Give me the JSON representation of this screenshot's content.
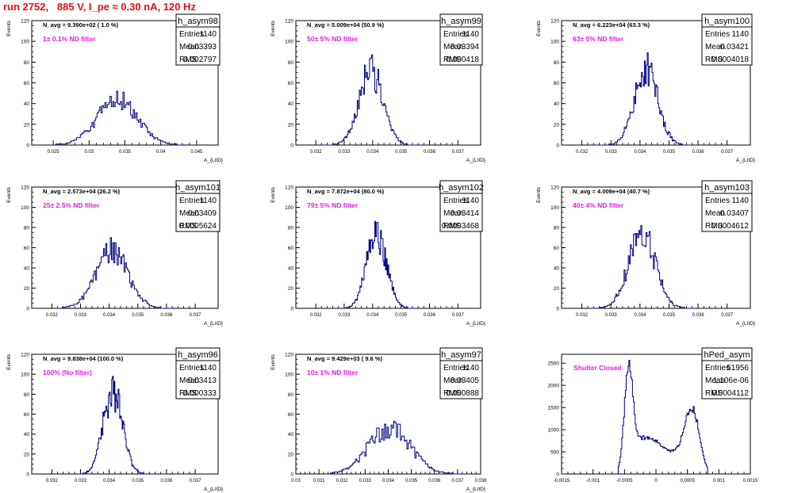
{
  "header": {
    "title": "run 2752,   885 V, I_pe ≈ 0.30 nA, 120 Hz"
  },
  "colors": {
    "title": "#e0101a",
    "annotation": "#e020e0",
    "hist_line": "#000080",
    "frame": "#000000"
  },
  "chart_data": [
    {
      "type": "histogram",
      "name": "h_asym98",
      "title": "h_asym98",
      "stats": {
        "Entries": "1140",
        "Mean": "0.03393",
        "RMS": "0.002797"
      },
      "navg": "N_avg = 9.390e+02 ( 1.0 %)",
      "annotation": "1± 0.1% ND filter",
      "xlabel": "A_{LIID}",
      "ylabel": "Events",
      "xlim": [
        0.022,
        0.048
      ],
      "ylim": [
        0,
        120
      ],
      "xticks": [
        0.025,
        0.03,
        0.035,
        0.04,
        0.045
      ],
      "xtick_labels": [
        "0.025",
        "0.03",
        "0.035",
        "0.04",
        "0.045"
      ],
      "yticks": [
        0,
        20,
        40,
        60,
        80,
        100,
        120
      ],
      "ytick_labels": [
        "0",
        "20",
        "40",
        "60",
        "80",
        "100",
        "120"
      ],
      "hist": {
        "mean": 0.03393,
        "rms": 0.002797,
        "peak": 46,
        "xmin": 0.025,
        "xmax": 0.043,
        "nbins": 100,
        "seed": 98
      }
    },
    {
      "type": "histogram",
      "name": "h_asym99",
      "title": "h_asym99",
      "stats": {
        "Entries": "1140",
        "Mean": "0.03394",
        "RMS": "0.000418"
      },
      "navg": "N_avg = 5.009e+04 (50.9 %)",
      "annotation": "50± 5% ND filter",
      "xlabel": "A_{LIID}",
      "ylabel": "Events",
      "xlim": [
        0.0313,
        0.0378
      ],
      "ylim": [
        0,
        120
      ],
      "xticks": [
        0.032,
        0.033,
        0.034,
        0.035,
        0.036,
        0.037
      ],
      "xtick_labels": [
        "0.032",
        "0.033",
        "0.034",
        "0.035",
        "0.036",
        "0.037"
      ],
      "yticks": [
        0,
        20,
        40,
        60,
        80,
        100,
        120
      ],
      "ytick_labels": [
        "0",
        "20",
        "40",
        "60",
        "80",
        "100",
        "120"
      ],
      "hist": {
        "mean": 0.03394,
        "rms": 0.000418,
        "peak": 76,
        "xmin": 0.0322,
        "xmax": 0.0358,
        "nbins": 100,
        "seed": 99
      }
    },
    {
      "type": "histogram",
      "name": "h_asym100",
      "title": "h_asym100",
      "stats": {
        "Entries": "1140",
        "Mean": "0.03421",
        "RMS": "0.0004018"
      },
      "navg": "N_avg = 6.223e+04 (63.3 %)",
      "annotation": "63± 5% ND filter",
      "xlabel": "A_{LIID}",
      "ylabel": "Events",
      "xlim": [
        0.0313,
        0.0378
      ],
      "ylim": [
        0,
        120
      ],
      "xticks": [
        0.032,
        0.033,
        0.034,
        0.035,
        0.036,
        0.037
      ],
      "xtick_labels": [
        "0.032",
        "0.033",
        "0.034",
        "0.035",
        "0.036",
        "0.037"
      ],
      "yticks": [
        0,
        20,
        40,
        60,
        80,
        100,
        120
      ],
      "ytick_labels": [
        "0",
        "20",
        "40",
        "60",
        "80",
        "100",
        "120"
      ],
      "hist": {
        "mean": 0.03421,
        "rms": 0.0004018,
        "peak": 79,
        "xmin": 0.0325,
        "xmax": 0.0358,
        "nbins": 100,
        "seed": 100
      }
    },
    {
      "type": "histogram",
      "name": "h_asym101",
      "title": "h_asym101",
      "stats": {
        "Entries": "1140",
        "Mean": "0.03409",
        "RMS": "0.0005624"
      },
      "navg": "N_avg = 2.573e+04 (26.2 %)",
      "annotation": "25± 2.5% ND filter",
      "xlabel": "A_{LIID}",
      "ylabel": "Events",
      "xlim": [
        0.0313,
        0.0378
      ],
      "ylim": [
        0,
        120
      ],
      "xticks": [
        0.032,
        0.033,
        0.034,
        0.035,
        0.036,
        0.037
      ],
      "xtick_labels": [
        "0.032",
        "0.033",
        "0.034",
        "0.035",
        "0.036",
        "0.037"
      ],
      "yticks": [
        0,
        20,
        40,
        60,
        80,
        100,
        120
      ],
      "ytick_labels": [
        "0",
        "20",
        "40",
        "60",
        "80",
        "100",
        "120"
      ],
      "hist": {
        "mean": 0.03409,
        "rms": 0.0005624,
        "peak": 60,
        "xmin": 0.0322,
        "xmax": 0.0362,
        "nbins": 100,
        "seed": 101
      }
    },
    {
      "type": "histogram",
      "name": "h_asym102",
      "title": "h_asym102",
      "stats": {
        "Entries": "1140",
        "Mean": "0.03414",
        "RMS": "0.0003468"
      },
      "navg": "N_avg = 7.872e+04 (80.0 %)",
      "annotation": "79± 5% ND filter",
      "xlabel": "A_{LIID}",
      "ylabel": "Events",
      "xlim": [
        0.0313,
        0.0378
      ],
      "ylim": [
        0,
        120
      ],
      "xticks": [
        0.032,
        0.033,
        0.034,
        0.035,
        0.036,
        0.037
      ],
      "xtick_labels": [
        "0.032",
        "0.033",
        "0.034",
        "0.035",
        "0.036",
        "0.037"
      ],
      "yticks": [
        0,
        20,
        40,
        60,
        80,
        100,
        120
      ],
      "ytick_labels": [
        "0",
        "20",
        "40",
        "60",
        "80",
        "100",
        "120"
      ],
      "hist": {
        "mean": 0.03414,
        "rms": 0.0003468,
        "peak": 78,
        "xmin": 0.0328,
        "xmax": 0.0357,
        "nbins": 100,
        "seed": 102
      }
    },
    {
      "type": "histogram",
      "name": "h_asym103",
      "title": "h_asym103",
      "stats": {
        "Entries": "1140",
        "Mean": "0.03407",
        "RMS": "0.0004612"
      },
      "navg": "N_avg = 4.009e+04 (40.7 %)",
      "annotation": "40± 4% ND filter",
      "xlabel": "A_{LIID}",
      "ylabel": "Events",
      "xlim": [
        0.0313,
        0.0378
      ],
      "ylim": [
        0,
        120
      ],
      "xticks": [
        0.032,
        0.033,
        0.034,
        0.035,
        0.036,
        0.037
      ],
      "xtick_labels": [
        "0.032",
        "0.033",
        "0.034",
        "0.035",
        "0.036",
        "0.037"
      ],
      "yticks": [
        0,
        20,
        40,
        60,
        80,
        100,
        120
      ],
      "ytick_labels": [
        "0",
        "20",
        "40",
        "60",
        "80",
        "100",
        "120"
      ],
      "hist": {
        "mean": 0.03407,
        "rms": 0.0004612,
        "peak": 78,
        "xmin": 0.0323,
        "xmax": 0.0359,
        "nbins": 100,
        "seed": 103
      }
    },
    {
      "type": "histogram",
      "name": "h_asym96",
      "title": "h_asym96",
      "stats": {
        "Entries": "1140",
        "Mean": "0.03413",
        "RMS": "0.000333"
      },
      "navg": "N_avg = 9.838e+04 (100.0 %)",
      "annotation": "100% (No filter)",
      "xlabel": "A_{LIID}",
      "ylabel": "Events",
      "xlim": [
        0.0313,
        0.0378
      ],
      "ylim": [
        0,
        120
      ],
      "xticks": [
        0.032,
        0.033,
        0.034,
        0.035,
        0.036,
        0.037
      ],
      "xtick_labels": [
        "0.032",
        "0.033",
        "0.034",
        "0.035",
        "0.036",
        "0.037"
      ],
      "yticks": [
        0,
        20,
        40,
        60,
        80,
        100,
        120
      ],
      "ytick_labels": [
        "0",
        "20",
        "40",
        "60",
        "80",
        "100",
        "120"
      ],
      "hist": {
        "mean": 0.03413,
        "rms": 0.000333,
        "peak": 88,
        "xmin": 0.0328,
        "xmax": 0.0356,
        "nbins": 100,
        "seed": 96
      }
    },
    {
      "type": "histogram",
      "name": "h_asym97",
      "title": "h_asym97",
      "stats": {
        "Entries": "1140",
        "Mean": "0.03405",
        "RMS": "0.000888"
      },
      "navg": "N_avg = 9.429e+03 ( 9.6 %)",
      "annotation": "10± 1% ND filter",
      "xlabel": "A_{LIID}",
      "ylabel": "Events",
      "xlim": [
        0.03,
        0.038
      ],
      "ylim": [
        0,
        120
      ],
      "xticks": [
        0.03,
        0.031,
        0.032,
        0.033,
        0.034,
        0.035,
        0.036,
        0.037,
        0.038
      ],
      "xtick_labels": [
        "0.03",
        "0.031",
        "0.032",
        "0.033",
        "0.034",
        "0.035",
        "0.036",
        "0.037",
        "0.038"
      ],
      "yticks": [
        0,
        20,
        40,
        60,
        80,
        100,
        120
      ],
      "ytick_labels": [
        "0",
        "20",
        "40",
        "60",
        "80",
        "100",
        "120"
      ],
      "hist": {
        "mean": 0.03405,
        "rms": 0.000888,
        "peak": 49,
        "xmin": 0.0315,
        "xmax": 0.0372,
        "nbins": 100,
        "seed": 97
      }
    },
    {
      "type": "histogram",
      "name": "hPed_asym",
      "title": "hPed_asym",
      "stats": {
        "Entries": "51956",
        "Mean": "1.106e-06",
        "RMS": "0.0004112"
      },
      "annotation": "Shutter Closed",
      "xlabel": "",
      "ylabel": "",
      "xlim": [
        -0.0015,
        0.0015
      ],
      "ylim": [
        0,
        2700
      ],
      "xticks": [
        -0.0015,
        -0.001,
        -0.0005,
        0,
        0.0005,
        0.001,
        0.0015
      ],
      "xtick_labels": [
        "-0.0015",
        "-0.001",
        "-0.0005",
        "0",
        "0.0005",
        "0.001",
        "0.0015"
      ],
      "yticks": [
        0,
        500,
        1000,
        1500,
        2000,
        2500
      ],
      "ytick_labels": [
        "0",
        "500",
        "1000",
        "1500",
        "2000",
        "2500"
      ],
      "hist": {
        "bimodal": true,
        "peak1_x": -0.00043,
        "peak1": 2500,
        "peak2_x": 0.00058,
        "peak2": 1470,
        "valley": 720,
        "xmin": -0.0006,
        "xmax": 0.00082,
        "nbins": 100,
        "seed": 7
      }
    }
  ]
}
